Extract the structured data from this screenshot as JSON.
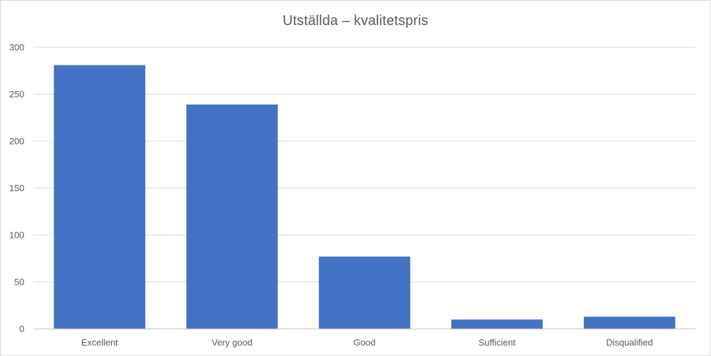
{
  "chart_data": {
    "type": "bar",
    "title": "Utställda – kvalitetspris",
    "xlabel": "",
    "ylabel": "",
    "categories": [
      "Excellent",
      "Very good",
      "Good",
      "Sufficient",
      "Disqualified"
    ],
    "values": [
      281,
      239,
      77,
      10,
      13
    ],
    "ylim": [
      0,
      300
    ],
    "yticks": [
      0,
      50,
      100,
      150,
      200,
      250,
      300
    ],
    "grid": true,
    "legend": "none",
    "bar_color": "#4472C4",
    "grid_color": "#d9d9d9",
    "axis_color": "#bfbfbf"
  }
}
